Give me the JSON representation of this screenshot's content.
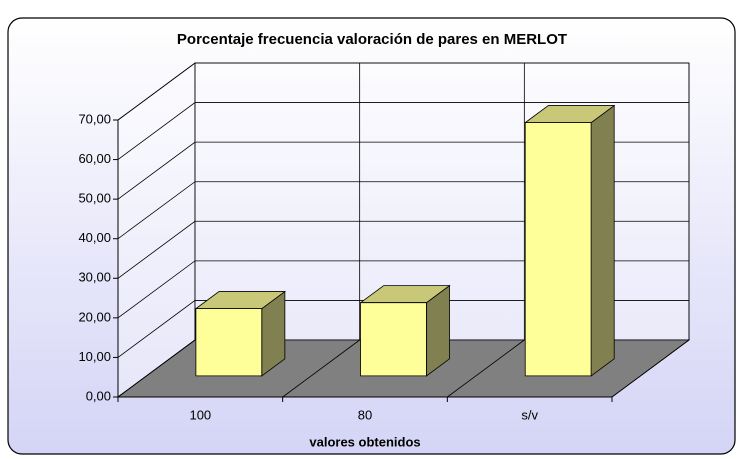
{
  "chart_data": {
    "type": "bar3d",
    "title": "Porcentaje frecuencia valoración de pares en MERLOT",
    "x_label": "valores obtenidos",
    "categories": [
      "100",
      "80",
      "s/v"
    ],
    "values": [
      17,
      18.5,
      64
    ],
    "color": "#ffff99",
    "ylim": [
      0,
      70
    ],
    "yticks": [
      {
        "value": 0,
        "label": "0,00"
      },
      {
        "value": 10,
        "label": "10,00"
      },
      {
        "value": 20,
        "label": "20,00"
      },
      {
        "value": 30,
        "label": "30,00"
      },
      {
        "value": 40,
        "label": "40,00"
      },
      {
        "value": 50,
        "label": "50,00"
      },
      {
        "value": 60,
        "label": "60,00"
      },
      {
        "value": 70,
        "label": "70,00"
      }
    ],
    "grid": true
  }
}
